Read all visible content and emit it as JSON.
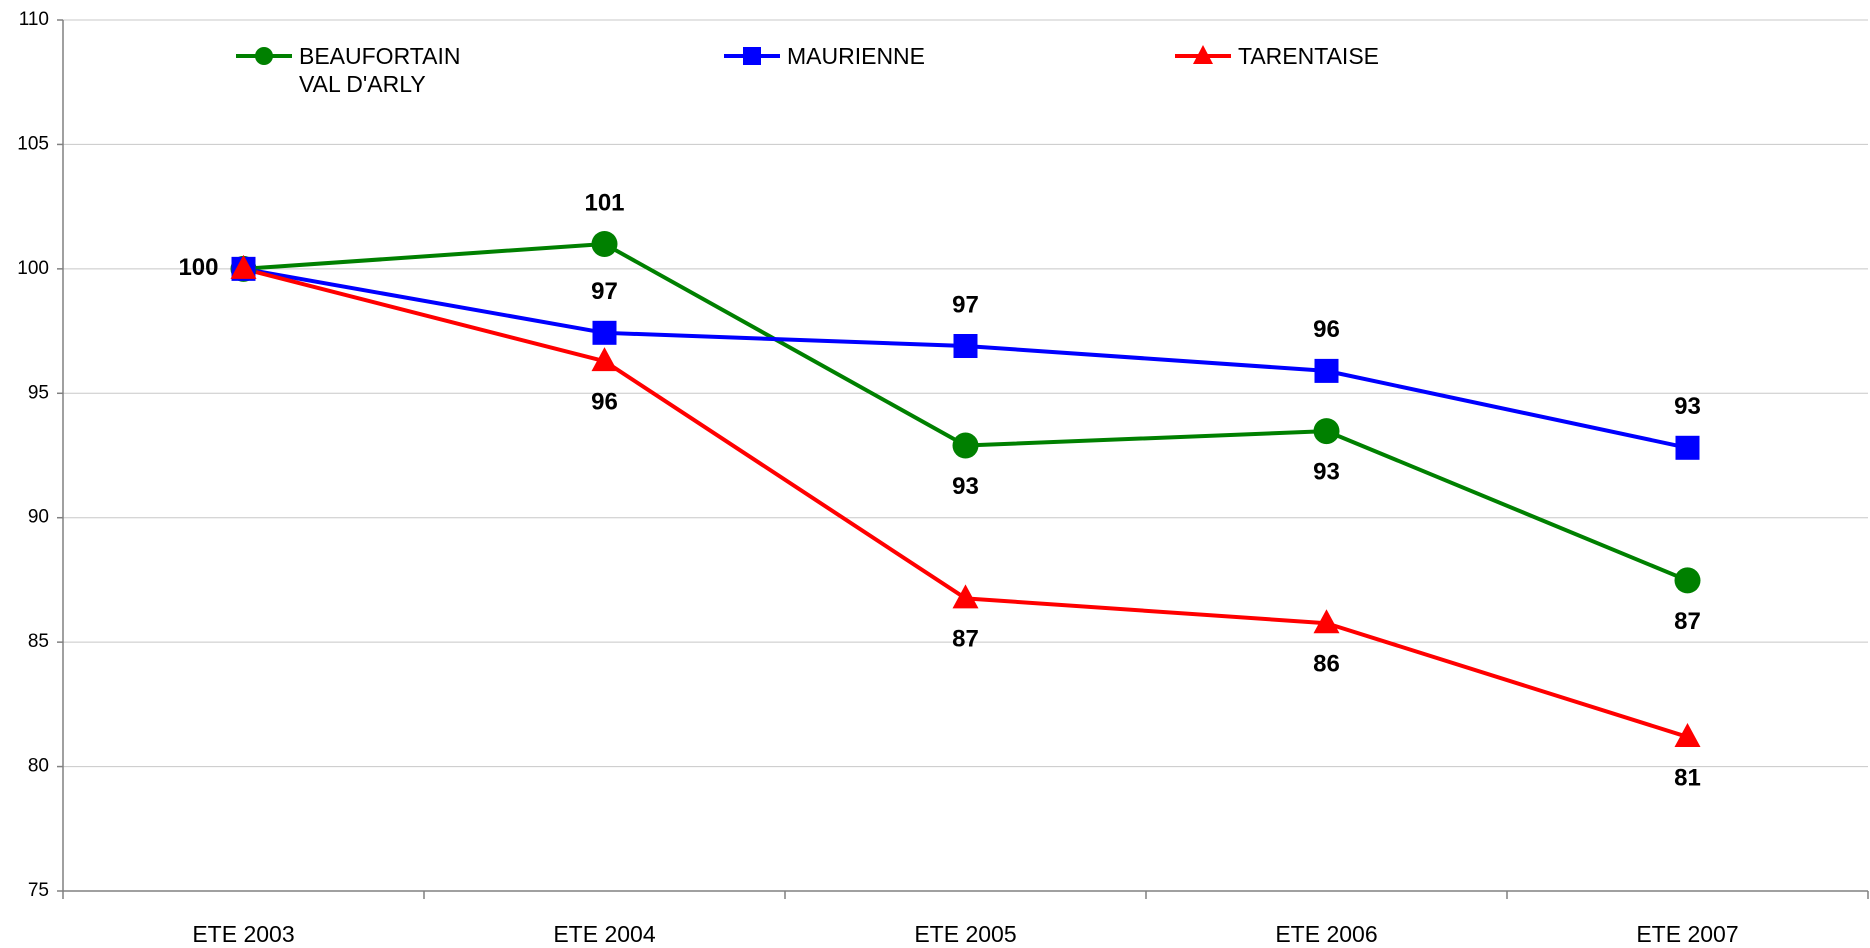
{
  "chart_data": {
    "type": "line",
    "categories": [
      "ETE 2003",
      "ETE 2004",
      "ETE 2005",
      "ETE 2006",
      "ETE 2007"
    ],
    "series": [
      {
        "name": "BEAUFORTAIN\nVAL D'ARLY",
        "color": "#008000",
        "marker": "circle",
        "values": [
          100,
          101,
          92.9,
          93.48,
          87.48
        ],
        "value_labels": [
          "100",
          "101",
          "93",
          "93",
          "87"
        ]
      },
      {
        "name": "MAURIENNE",
        "color": "#0000ff",
        "marker": "square",
        "values": [
          100,
          97.43,
          96.9,
          95.9,
          92.81
        ],
        "value_labels": [
          null,
          "97",
          "97",
          "96",
          "93"
        ]
      },
      {
        "name": "TARENTAISE",
        "color": "#ff0000",
        "marker": "triangle",
        "values": [
          100,
          96.29,
          86.76,
          85.76,
          81.19
        ],
        "value_labels": [
          null,
          "96",
          "87",
          "86",
          "81"
        ]
      }
    ],
    "ylim": [
      75,
      110
    ],
    "yticks": [
      75,
      80,
      85,
      90,
      95,
      100,
      105,
      110
    ],
    "grid": true,
    "legend": "top"
  }
}
